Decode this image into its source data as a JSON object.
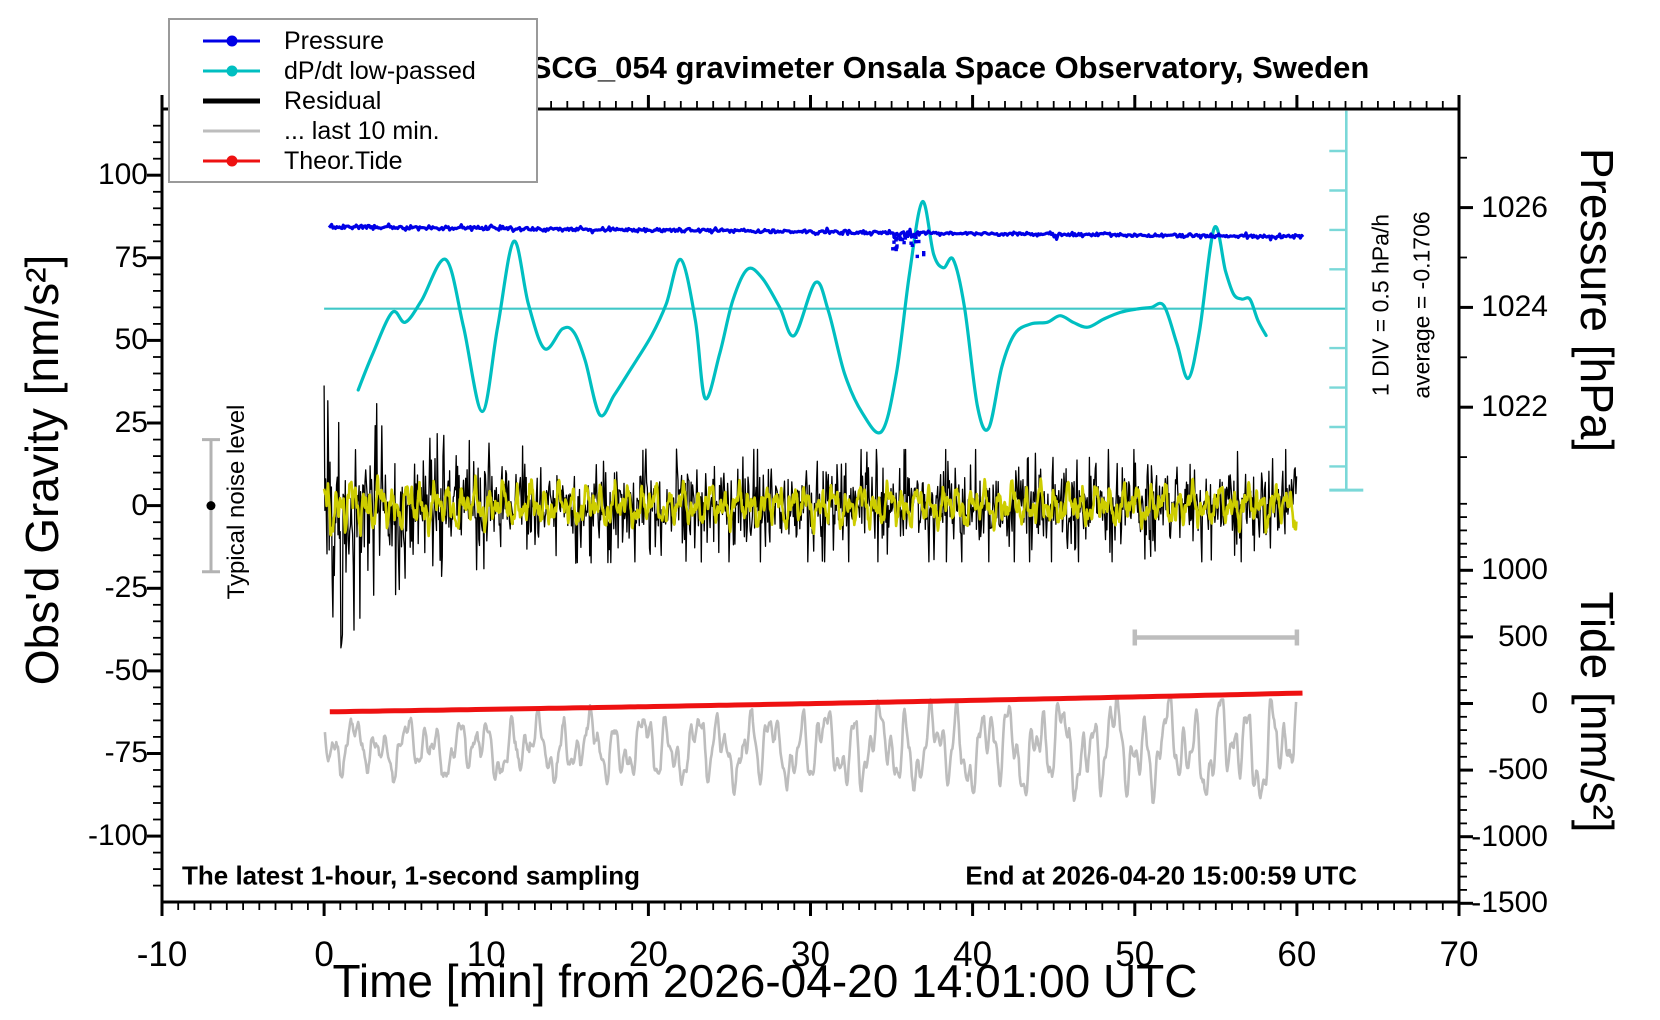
{
  "title": "SCG_054 gravimeter Onsala Space Observatory, Sweden",
  "legend": {
    "items": [
      {
        "label": "Pressure",
        "color": "#0000e6",
        "style": "line-dot"
      },
      {
        "label": "dP/dt low-passed",
        "color": "#00bfc1",
        "style": "line-dot"
      },
      {
        "label": "Residual",
        "color": "#000000",
        "style": "thick-line"
      },
      {
        "label": "... last 10 min.",
        "color": "#bdbdbd",
        "style": "line"
      },
      {
        "label": "Theor.Tide",
        "color": "#ee1111",
        "style": "line-dot"
      }
    ]
  },
  "axes": {
    "x": {
      "title": "Time [min] from 2026-04-20 14:01:00 UTC",
      "min": -10,
      "max": 70,
      "major_ticks": [
        -10,
        0,
        10,
        20,
        30,
        40,
        50,
        60,
        70
      ],
      "minor_step": 1
    },
    "gravity": {
      "title": "Obs'd Gravity [nm/s²]",
      "min": -120,
      "max": 120,
      "major_ticks": [
        -100,
        -75,
        -50,
        -25,
        0,
        25,
        50,
        75,
        100
      ],
      "minor_step": 5
    },
    "pressure": {
      "title": "Pressure [hPa]",
      "min": 1020,
      "max": 1028,
      "major_ticks": [
        1022,
        1024,
        1026
      ],
      "minor_step": 1
    },
    "tide": {
      "title": "Tide [nm/s²]",
      "min": -1500,
      "max": 1500,
      "major_ticks": [
        1000,
        500,
        0,
        -500,
        -1000,
        -1500
      ],
      "minor_step": 100
    }
  },
  "annotations": {
    "sampling_note": "The latest 1-hour, 1-second sampling",
    "end_note": "End at 2026-04-20 15:00:59 UTC",
    "noise_level": {
      "label": "Typical noise level",
      "t": -6.98,
      "gravity_center": 0,
      "gravity_half_range": 20
    },
    "dpdt_scale": {
      "label": "1 DIV = 0.5 hPa/h",
      "average_label": "average = -0.1706",
      "t": 63.05,
      "top_gravity": 119.5,
      "bottom_gravity": 4.7,
      "zero_gravity": 59.6,
      "div_gravity": 11.93
    },
    "last10_bar": {
      "t_start": 50,
      "t_end": 60,
      "gravity": -39.9
    }
  },
  "colors": {
    "pressure": "#0000e6",
    "dpdt": "#00bfc1",
    "dpdt_light": "#7ad8d8",
    "dpdt_ref": "#40c8c8",
    "residual": "#000000",
    "residual_lp": "#cdcd00",
    "last10": "#bdbdbd",
    "tide": "#ee1111",
    "noise_marker": "#b3b3b3",
    "frame": "#000000"
  },
  "chart_data": {
    "type": "line",
    "series": [
      {
        "name": "Pressure",
        "axis": "pressure",
        "color": "#0000e6",
        "model": {
          "t_start": 0.3,
          "t_end": 60.45,
          "start_hPa": 1025.62,
          "end_hPa": 1025.41,
          "noise_hPa": 0.022,
          "anomaly": {
            "t_start": 35.0,
            "t_end": 37.2,
            "max_drop_hPa": 0.5,
            "n_dots": 26
          }
        }
      },
      {
        "name": "dP/dt low-passed",
        "axis": "gravity",
        "color": "#00bfc1",
        "reference_gravity": 59.6,
        "points": [
          [
            2.1,
            35
          ],
          [
            3.0,
            46
          ],
          [
            4.2,
            58.5
          ],
          [
            5.0,
            55.5
          ],
          [
            6.0,
            62
          ],
          [
            7.5,
            74.5
          ],
          [
            8.6,
            54
          ],
          [
            9.75,
            28.5
          ],
          [
            10.7,
            54
          ],
          [
            11.7,
            80
          ],
          [
            12.6,
            61
          ],
          [
            13.6,
            47.5
          ],
          [
            14.7,
            53.5
          ],
          [
            15.4,
            52.5
          ],
          [
            16.1,
            44
          ],
          [
            17.0,
            27.5
          ],
          [
            17.9,
            33.5
          ],
          [
            19.0,
            42
          ],
          [
            20.2,
            51.5
          ],
          [
            21.1,
            61
          ],
          [
            22.0,
            74.5
          ],
          [
            22.9,
            56
          ],
          [
            23.5,
            32.5
          ],
          [
            24.4,
            46
          ],
          [
            25.2,
            62
          ],
          [
            26.1,
            71.5
          ],
          [
            27.0,
            69
          ],
          [
            28.1,
            60
          ],
          [
            29.0,
            51.5
          ],
          [
            30.3,
            67.5
          ],
          [
            31.1,
            59
          ],
          [
            32.1,
            40
          ],
          [
            33.2,
            28
          ],
          [
            34.4,
            22.5
          ],
          [
            35.3,
            40
          ],
          [
            36.1,
            70
          ],
          [
            36.9,
            92
          ],
          [
            37.6,
            76
          ],
          [
            38.2,
            72
          ],
          [
            38.8,
            74.5
          ],
          [
            39.5,
            60
          ],
          [
            40.3,
            30
          ],
          [
            41.0,
            23.5
          ],
          [
            41.8,
            42
          ],
          [
            42.6,
            52
          ],
          [
            43.6,
            55
          ],
          [
            44.6,
            55.5
          ],
          [
            45.4,
            57.5
          ],
          [
            46.2,
            55.5
          ],
          [
            47.1,
            54
          ],
          [
            48.1,
            56.5
          ],
          [
            49.1,
            58.5
          ],
          [
            50.1,
            59.5
          ],
          [
            51.0,
            60
          ],
          [
            51.8,
            60.5
          ],
          [
            52.6,
            49
          ],
          [
            53.3,
            38.5
          ],
          [
            54.0,
            53
          ],
          [
            54.9,
            84
          ],
          [
            55.6,
            71
          ],
          [
            56.1,
            64
          ],
          [
            56.6,
            62.5
          ],
          [
            57.1,
            62.5
          ],
          [
            57.6,
            56
          ],
          [
            58.1,
            51.5
          ]
        ]
      },
      {
        "name": "Residual",
        "axis": "gravity",
        "color": "#000000",
        "model": {
          "t_start": 0,
          "t_end": 60,
          "dt": 0.045,
          "sigma_base": 5.5,
          "sigma_burst": 11.5,
          "sigma_decay_min": 4,
          "spike_prob": 0.13,
          "spike_gain": 2.0,
          "clamp_base": 17,
          "clamp_burst": 35,
          "clamp_decay_min": 3.5
        }
      },
      {
        "name": "Residual low-passed",
        "axis": "gravity",
        "color": "#cdcd00",
        "model": {
          "t_start": 0,
          "t_end": 60,
          "dt": 0.03,
          "envelope_extra": 0.5,
          "envelope_decay_min": 5,
          "components": [
            [
              2.9,
              7.4,
              1.3
            ],
            [
              2.3,
              14.6,
              4.0
            ],
            [
              1.7,
              3.4,
              2.1
            ],
            [
              1.3,
              27,
              0.6
            ],
            [
              0.9,
              51,
              2.9
            ]
          ],
          "jitter": 0.5
        }
      },
      {
        "name": "... last 10 min.",
        "axis": "tide",
        "color": "#bdbdbd",
        "model": {
          "t_start": 0.05,
          "t_end": 59.95,
          "dt": 0.05,
          "center": -334,
          "amp_base": 205,
          "amp_slope": 3.4,
          "max_tide": 30,
          "jitter": 12,
          "components": [
            [
              0.52,
              3.88,
              0.7
            ],
            [
              0.34,
              8.05,
              2.2
            ],
            [
              0.3,
              1.75,
              4.4
            ],
            [
              0.22,
              15.3,
              1.1
            ],
            [
              0.18,
              5.9,
              3.3
            ]
          ]
        }
      },
      {
        "name": "Theor.Tide",
        "axis": "tide",
        "color": "#ee1111",
        "model": {
          "t_start": 0.35,
          "t_end": 60.6,
          "start_tide": -63,
          "lin": 1.8,
          "quad": 0.009
        }
      }
    ]
  }
}
